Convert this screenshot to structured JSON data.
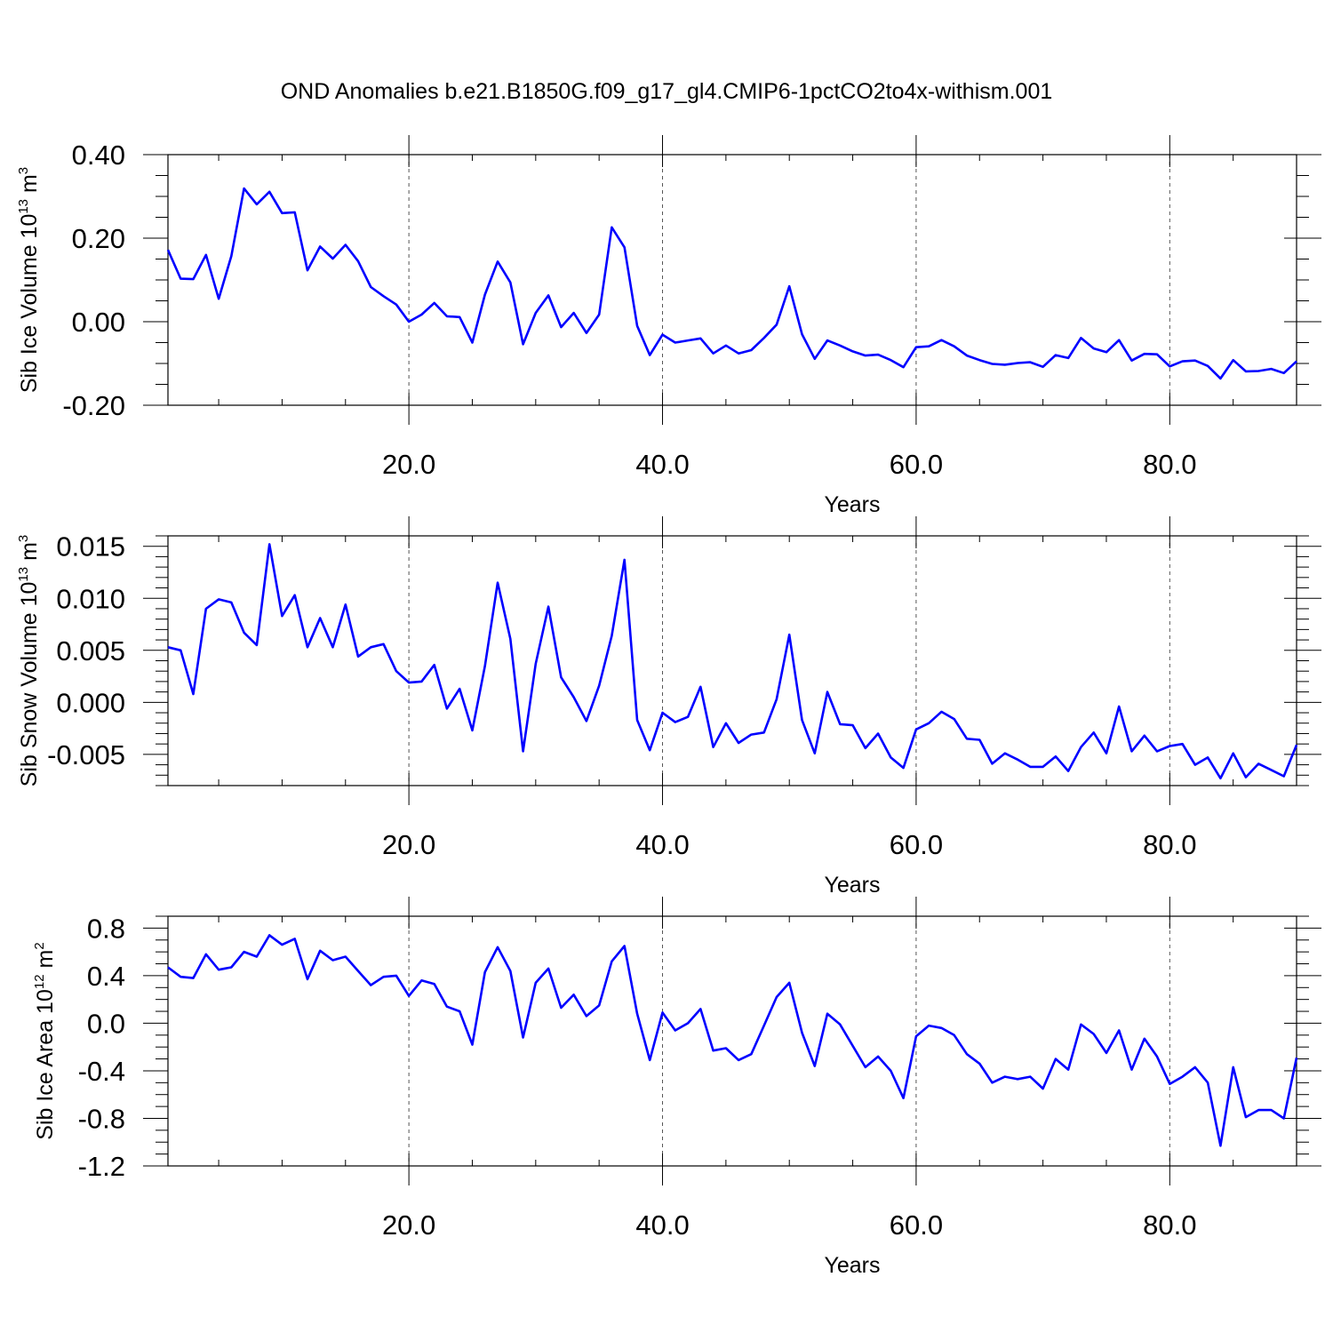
{
  "figure": {
    "title": "OND Anomalies b.e21.B1850G.f09_g17_gl4.CMIP6-1pctCO2to4x-withism.001"
  },
  "chart_data": [
    {
      "type": "line",
      "title": "OND Anomalies b.e21.B1850G.f09_g17_gl4.CMIP6-1pctCO2to4x-withism.001",
      "xlabel": "Years",
      "ylabel": {
        "text": "Sib Ice Volume 10",
        "exp": "13",
        "unit": " m",
        "unit_exp": "3"
      },
      "xlim": [
        1,
        90
      ],
      "ylim": [
        -0.2,
        0.4
      ],
      "xticks": [
        20,
        40,
        60,
        80
      ],
      "xtick_labels": [
        "20.0",
        "40.0",
        "60.0",
        "80.0"
      ],
      "yticks": [
        -0.2,
        0.0,
        0.2,
        0.4
      ],
      "ytick_labels": [
        "-0.20",
        "0.00",
        "0.20",
        "0.40"
      ],
      "y_minor": 0.05,
      "grid": "vertical dashed at x ticks",
      "line_color": "#0000ff",
      "x": [
        1,
        2,
        3,
        4,
        5,
        6,
        7,
        8,
        9,
        10,
        11,
        12,
        13,
        14,
        15,
        16,
        17,
        18,
        19,
        20,
        21,
        22,
        23,
        24,
        25,
        26,
        27,
        28,
        29,
        30,
        31,
        32,
        33,
        34,
        35,
        36,
        37,
        38,
        39,
        40,
        41,
        42,
        43,
        44,
        45,
        46,
        47,
        48,
        49,
        50,
        51,
        52,
        53,
        54,
        55,
        56,
        57,
        58,
        59,
        60,
        61,
        62,
        63,
        64,
        65,
        66,
        67,
        68,
        69,
        70,
        71,
        72,
        73,
        74,
        75,
        76,
        77,
        78,
        79,
        80,
        81,
        82,
        83,
        84,
        85,
        86,
        87,
        88,
        89,
        90
      ],
      "y": [
        0.172,
        0.103,
        0.102,
        0.16,
        0.055,
        0.157,
        0.319,
        0.281,
        0.311,
        0.26,
        0.262,
        0.123,
        0.18,
        0.151,
        0.184,
        0.145,
        0.083,
        0.061,
        0.041,
        0.0,
        0.017,
        0.045,
        0.013,
        0.011,
        -0.05,
        0.065,
        0.144,
        0.094,
        -0.054,
        0.021,
        0.063,
        -0.013,
        0.021,
        -0.027,
        0.017,
        0.226,
        0.178,
        -0.01,
        -0.08,
        -0.031,
        -0.05,
        -0.045,
        -0.04,
        -0.076,
        -0.057,
        -0.076,
        -0.068,
        -0.039,
        -0.007,
        0.085,
        -0.03,
        -0.089,
        -0.045,
        -0.057,
        -0.071,
        -0.081,
        -0.079,
        -0.092,
        -0.109,
        -0.061,
        -0.059,
        -0.044,
        -0.059,
        -0.081,
        -0.092,
        -0.101,
        -0.103,
        -0.099,
        -0.097,
        -0.108,
        -0.08,
        -0.087,
        -0.039,
        -0.064,
        -0.073,
        -0.044,
        -0.093,
        -0.077,
        -0.078,
        -0.107,
        -0.095,
        -0.093,
        -0.106,
        -0.136,
        -0.092,
        -0.119,
        -0.118,
        -0.113,
        -0.123,
        -0.095
      ]
    },
    {
      "type": "line",
      "xlabel": "Years",
      "ylabel": {
        "text": "Sib Snow Volume 10",
        "exp": "13",
        "unit": " m",
        "unit_exp": "3"
      },
      "xlim": [
        1,
        90
      ],
      "ylim": [
        -0.008,
        0.016
      ],
      "xticks": [
        20,
        40,
        60,
        80
      ],
      "xtick_labels": [
        "20.0",
        "40.0",
        "60.0",
        "80.0"
      ],
      "yticks": [
        -0.005,
        0.0,
        0.005,
        0.01,
        0.015
      ],
      "ytick_labels": [
        "-0.005",
        "0.000",
        "0.005",
        "0.010",
        "0.015"
      ],
      "y_minor": 0.001,
      "grid": "vertical dashed at x ticks",
      "line_color": "#0000ff",
      "x": [
        1,
        2,
        3,
        4,
        5,
        6,
        7,
        8,
        9,
        10,
        11,
        12,
        13,
        14,
        15,
        16,
        17,
        18,
        19,
        20,
        21,
        22,
        23,
        24,
        25,
        26,
        27,
        28,
        29,
        30,
        31,
        32,
        33,
        34,
        35,
        36,
        37,
        38,
        39,
        40,
        41,
        42,
        43,
        44,
        45,
        46,
        47,
        48,
        49,
        50,
        51,
        52,
        53,
        54,
        55,
        56,
        57,
        58,
        59,
        60,
        61,
        62,
        63,
        64,
        65,
        66,
        67,
        68,
        69,
        70,
        71,
        72,
        73,
        74,
        75,
        76,
        77,
        78,
        79,
        80,
        81,
        82,
        83,
        84,
        85,
        86,
        87,
        88,
        89,
        90
      ],
      "y": [
        0.0053,
        0.005,
        0.0008,
        0.009,
        0.0099,
        0.0096,
        0.0067,
        0.0055,
        0.0152,
        0.0083,
        0.0103,
        0.0053,
        0.0081,
        0.0053,
        0.0094,
        0.0044,
        0.0053,
        0.0056,
        0.003,
        0.0019,
        0.002,
        0.0036,
        -0.0006,
        0.0013,
        -0.0027,
        0.0035,
        0.0115,
        0.0061,
        -0.0047,
        0.0037,
        0.0092,
        0.0024,
        0.0005,
        -0.0018,
        0.0016,
        0.0064,
        0.0137,
        -0.0017,
        -0.0046,
        -0.001,
        -0.0019,
        -0.0014,
        0.0015,
        -0.0043,
        -0.002,
        -0.0039,
        -0.0031,
        -0.0029,
        0.0003,
        0.0065,
        -0.0017,
        -0.0049,
        0.001,
        -0.0021,
        -0.0022,
        -0.0044,
        -0.003,
        -0.0053,
        -0.0063,
        -0.0026,
        -0.002,
        -0.0009,
        -0.0016,
        -0.0035,
        -0.0036,
        -0.0059,
        -0.0049,
        -0.0055,
        -0.0062,
        -0.0062,
        -0.0052,
        -0.0066,
        -0.0043,
        -0.0029,
        -0.0049,
        -0.0004,
        -0.0047,
        -0.0032,
        -0.0047,
        -0.0042,
        -0.004,
        -0.006,
        -0.0053,
        -0.0073,
        -0.0049,
        -0.0072,
        -0.0059,
        -0.0065,
        -0.0071,
        -0.0041
      ]
    },
    {
      "type": "line",
      "xlabel": "Years",
      "ylabel": {
        "text": "Sib Ice Area 10",
        "exp": "12",
        "unit": " m",
        "unit_exp": "2"
      },
      "xlim": [
        1,
        90
      ],
      "ylim": [
        -1.2,
        0.9
      ],
      "xticks": [
        20,
        40,
        60,
        80
      ],
      "xtick_labels": [
        "20.0",
        "40.0",
        "60.0",
        "80.0"
      ],
      "yticks": [
        -1.2,
        -0.8,
        -0.4,
        0.0,
        0.4,
        0.8
      ],
      "ytick_labels": [
        "-1.2",
        "-0.8",
        "-0.4",
        "0.0",
        "0.4",
        "0.8"
      ],
      "y_minor": 0.1,
      "grid": "vertical dashed at x ticks",
      "line_color": "#0000ff",
      "x": [
        1,
        2,
        3,
        4,
        5,
        6,
        7,
        8,
        9,
        10,
        11,
        12,
        13,
        14,
        15,
        16,
        17,
        18,
        19,
        20,
        21,
        22,
        23,
        24,
        25,
        26,
        27,
        28,
        29,
        30,
        31,
        32,
        33,
        34,
        35,
        36,
        37,
        38,
        39,
        40,
        41,
        42,
        43,
        44,
        45,
        46,
        47,
        48,
        49,
        50,
        51,
        52,
        53,
        54,
        55,
        56,
        57,
        58,
        59,
        60,
        61,
        62,
        63,
        64,
        65,
        66,
        67,
        68,
        69,
        70,
        71,
        72,
        73,
        74,
        75,
        76,
        77,
        78,
        79,
        80,
        81,
        82,
        83,
        84,
        85,
        86,
        87,
        88,
        89,
        90
      ],
      "y": [
        0.47,
        0.39,
        0.38,
        0.58,
        0.45,
        0.47,
        0.6,
        0.56,
        0.74,
        0.66,
        0.71,
        0.37,
        0.61,
        0.53,
        0.56,
        0.44,
        0.32,
        0.39,
        0.4,
        0.23,
        0.36,
        0.33,
        0.14,
        0.1,
        -0.18,
        0.43,
        0.64,
        0.44,
        -0.12,
        0.34,
        0.46,
        0.13,
        0.24,
        0.06,
        0.15,
        0.52,
        0.65,
        0.08,
        -0.31,
        0.09,
        -0.06,
        0.0,
        0.12,
        -0.23,
        -0.21,
        -0.31,
        -0.26,
        -0.02,
        0.22,
        0.34,
        -0.08,
        -0.36,
        0.08,
        -0.01,
        -0.19,
        -0.37,
        -0.28,
        -0.4,
        -0.63,
        -0.11,
        -0.02,
        -0.04,
        -0.1,
        -0.26,
        -0.34,
        -0.5,
        -0.45,
        -0.47,
        -0.45,
        -0.55,
        -0.3,
        -0.39,
        -0.01,
        -0.09,
        -0.25,
        -0.06,
        -0.39,
        -0.13,
        -0.28,
        -0.51,
        -0.45,
        -0.37,
        -0.5,
        -1.03,
        -0.37,
        -0.79,
        -0.73,
        -0.73,
        -0.8,
        -0.29
      ]
    }
  ]
}
